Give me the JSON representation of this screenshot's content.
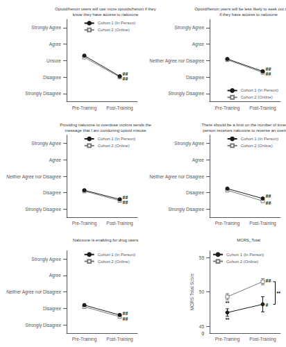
{
  "chart_data": [
    {
      "type": "line",
      "title": "Opioid/heroin users will use more opioids/heroin if they\nknow they have access to naloxone",
      "categories": [
        "Pre-Training",
        "Post-Training"
      ],
      "series": [
        {
          "name": "Cohort 1 (In Person)",
          "color": "#1a1a1a",
          "marker": "circle",
          "values": [
            3.3,
            2.05
          ],
          "errors": [
            0.07,
            0.07
          ]
        },
        {
          "name": "Cohort 2 (Online)",
          "color": "#7a7a7a",
          "marker": "open square",
          "values": [
            3.2,
            2.0
          ],
          "errors": [
            0.07,
            0.07
          ]
        }
      ],
      "ylim": [
        0.5,
        5.5
      ],
      "yticks": [
        {
          "value": 1,
          "label": "Strongly Disagree"
        },
        {
          "value": 2,
          "label": "Disagree"
        },
        {
          "value": 3,
          "label": "Unsure"
        },
        {
          "value": 4,
          "label": "Agree"
        },
        {
          "value": 5,
          "label": "Strongly Agree"
        }
      ],
      "grid": false,
      "legend": "upper right",
      "annotations": [
        {
          "text": "##",
          "x": "Post-Training",
          "y": 2.18
        },
        {
          "text": "##",
          "x": "Post-Training",
          "y": 1.88
        }
      ]
    },
    {
      "type": "line",
      "title": "Opioid/heroin users will be less likely to seek out treatment\nif they have access to naloxone",
      "categories": [
        "Pre-Training",
        "Post-Training"
      ],
      "series": [
        {
          "name": "Cohort 1 (In Person)",
          "color": "#1a1a1a",
          "marker": "circle",
          "values": [
            3.1,
            2.35
          ],
          "errors": [
            0.07,
            0.07
          ]
        },
        {
          "name": "Cohort 2 (Online)",
          "color": "#7a7a7a",
          "marker": "open square",
          "values": [
            3.05,
            2.28
          ],
          "errors": [
            0.07,
            0.07
          ]
        }
      ],
      "ylim": [
        0.5,
        5.5
      ],
      "yticks": [
        {
          "value": 1,
          "label": "Strongly Disagree"
        },
        {
          "value": 2,
          "label": "Disagree"
        },
        {
          "value": 3,
          "label": "Neither Agree nor Disagree"
        },
        {
          "value": 4,
          "label": "Agree"
        },
        {
          "value": 5,
          "label": "Strongly Agree"
        }
      ],
      "grid": false,
      "legend": "lower right",
      "annotations": [
        {
          "text": "##",
          "x": "Post-Training",
          "y": 2.48
        },
        {
          "text": "##",
          "x": "Post-Training",
          "y": 2.18
        }
      ]
    },
    {
      "type": "line",
      "title": "Providing naloxone to overdose victims sends the\nmessage that I am condoning opioid misuse",
      "categories": [
        "Pre-Training",
        "Post-Training"
      ],
      "series": [
        {
          "name": "Cohort 1 (In Person)",
          "color": "#1a1a1a",
          "marker": "circle",
          "values": [
            2.15,
            1.6
          ],
          "errors": [
            0.07,
            0.07
          ]
        },
        {
          "name": "Cohort 2 (Online)",
          "color": "#7a7a7a",
          "marker": "open square",
          "values": [
            2.1,
            1.52
          ],
          "errors": [
            0.07,
            0.07
          ]
        }
      ],
      "ylim": [
        0.5,
        5.5
      ],
      "yticks": [
        {
          "value": 1,
          "label": "Strongly Disagree"
        },
        {
          "value": 2,
          "label": "Disagree"
        },
        {
          "value": 3,
          "label": "Neither Agree nor Disagree"
        },
        {
          "value": 4,
          "label": "Agree"
        },
        {
          "value": 5,
          "label": "Strongly Agree"
        }
      ],
      "grid": false,
      "legend": "upper right",
      "annotations": [
        {
          "text": "##",
          "x": "Post-Training",
          "y": 1.72
        },
        {
          "text": "##",
          "x": "Post-Training",
          "y": 1.42
        }
      ]
    },
    {
      "type": "line",
      "title": "There should be a limit on the number of times one\nperson receives naloxone to reverse an overdose",
      "categories": [
        "Pre-Training",
        "Post-Training"
      ],
      "series": [
        {
          "name": "Cohort 1 (In Person)",
          "color": "#1a1a1a",
          "marker": "circle",
          "values": [
            2.25,
            1.65
          ],
          "errors": [
            0.07,
            0.07
          ]
        },
        {
          "name": "Cohort 2 (Online)",
          "color": "#7a7a7a",
          "marker": "open square",
          "values": [
            2.15,
            1.5
          ],
          "errors": [
            0.07,
            0.07
          ]
        }
      ],
      "ylim": [
        0.5,
        5.5
      ],
      "yticks": [
        {
          "value": 1,
          "label": "Strongly Disagree"
        },
        {
          "value": 2,
          "label": "Disagree"
        },
        {
          "value": 3,
          "label": "Neither Agree nor Disagree"
        },
        {
          "value": 4,
          "label": "Agree"
        },
        {
          "value": 5,
          "label": "Strongly Agree"
        }
      ],
      "grid": false,
      "legend": "upper right",
      "annotations": [
        {
          "text": "##",
          "x": "Post-Training",
          "y": 1.78
        },
        {
          "text": "##",
          "x": "Post-Training",
          "y": 1.38
        }
      ]
    },
    {
      "type": "line",
      "title": "Naloxone is enabling for drug users",
      "categories": [
        "Pre-Training",
        "Post-Training"
      ],
      "series": [
        {
          "name": "Cohort 1 (In Person)",
          "color": "#1a1a1a",
          "marker": "circle",
          "values": [
            2.2,
            1.6
          ],
          "errors": [
            0.07,
            0.07
          ]
        },
        {
          "name": "Cohort 2 (Online)",
          "color": "#7a7a7a",
          "marker": "open square",
          "values": [
            2.1,
            1.5
          ],
          "errors": [
            0.07,
            0.07
          ]
        }
      ],
      "ylim": [
        0.5,
        5.5
      ],
      "yticks": [
        {
          "value": 1,
          "label": "Strongly Disagree"
        },
        {
          "value": 2,
          "label": "Disagree"
        },
        {
          "value": 3,
          "label": "Neither Agree nor Disagree"
        },
        {
          "value": 4,
          "label": "Agree"
        },
        {
          "value": 5,
          "label": "Strongly Agree"
        }
      ],
      "grid": false,
      "legend": "upper right",
      "annotations": [
        {
          "text": "##",
          "x": "Post-Training",
          "y": 1.72
        },
        {
          "text": "##",
          "x": "Post-Training",
          "y": 1.38
        }
      ]
    },
    {
      "type": "line",
      "title": "MCRS_Total",
      "ylabel": "MCRS Total Score",
      "categories": [
        "Pre-Training",
        "Post-Training"
      ],
      "series": [
        {
          "name": "Cohort 1 (In Person)",
          "color": "#1a1a1a",
          "marker": "circle",
          "values": [
            47.0,
            48.2
          ],
          "errors": [
            0.55,
            1.1
          ]
        },
        {
          "name": "Cohort 2 (Online)",
          "color": "#7a7a7a",
          "marker": "open square",
          "values": [
            49.3,
            51.5
          ],
          "errors": [
            0.45,
            0.45
          ]
        }
      ],
      "ylim": [
        44.0,
        56.0
      ],
      "yticks": [
        45,
        50,
        55
      ],
      "grid": false,
      "legend": "upper left",
      "annotations": [
        {
          "text": "0",
          "y": 44.35
        },
        {
          "text": "**",
          "x": "Pre-Training",
          "y": 46.3
        },
        {
          "text": "**",
          "x": "Pre-Training",
          "y": 48.8
        },
        {
          "text": "##",
          "x": "Post-Training",
          "y": 51.65
        },
        {
          "text": "#",
          "x": "Post-Training",
          "y": 48.05
        },
        {
          "text": "**",
          "x": "Post-Training",
          "y": 49.85,
          "span": [
            48.2,
            51.5
          ]
        }
      ]
    }
  ]
}
